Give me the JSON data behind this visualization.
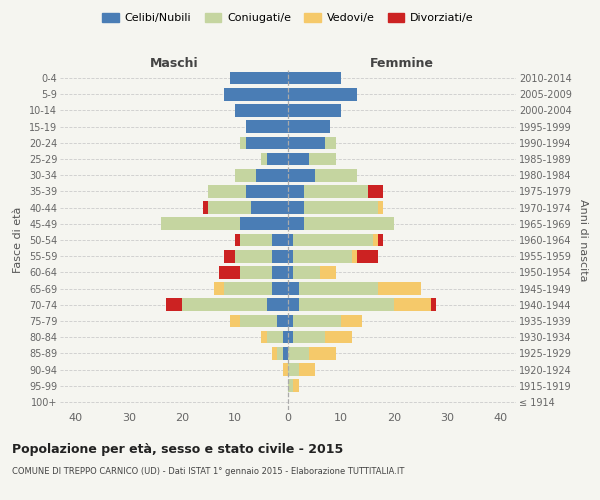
{
  "age_groups": [
    "100+",
    "95-99",
    "90-94",
    "85-89",
    "80-84",
    "75-79",
    "70-74",
    "65-69",
    "60-64",
    "55-59",
    "50-54",
    "45-49",
    "40-44",
    "35-39",
    "30-34",
    "25-29",
    "20-24",
    "15-19",
    "10-14",
    "5-9",
    "0-4"
  ],
  "birth_years": [
    "≤ 1914",
    "1915-1919",
    "1920-1924",
    "1925-1929",
    "1930-1934",
    "1935-1939",
    "1940-1944",
    "1945-1949",
    "1950-1954",
    "1955-1959",
    "1960-1964",
    "1965-1969",
    "1970-1974",
    "1975-1979",
    "1980-1984",
    "1985-1989",
    "1990-1994",
    "1995-1999",
    "2000-2004",
    "2005-2009",
    "2010-2014"
  ],
  "colors": {
    "celibe": "#4a7db5",
    "coniugato": "#c5d5a0",
    "vedovo": "#f5c96a",
    "divorziato": "#cc2222"
  },
  "maschi": {
    "celibe": [
      0,
      0,
      0,
      1,
      1,
      2,
      4,
      3,
      3,
      3,
      3,
      9,
      7,
      8,
      6,
      4,
      8,
      8,
      10,
      12,
      11
    ],
    "coniugato": [
      0,
      0,
      0,
      1,
      3,
      7,
      16,
      9,
      6,
      7,
      6,
      15,
      8,
      7,
      4,
      1,
      1,
      0,
      0,
      0,
      0
    ],
    "vedovo": [
      0,
      0,
      1,
      1,
      1,
      2,
      0,
      2,
      0,
      0,
      0,
      0,
      0,
      0,
      0,
      0,
      0,
      0,
      0,
      0,
      0
    ],
    "divorziato": [
      0,
      0,
      0,
      0,
      0,
      0,
      3,
      0,
      4,
      2,
      1,
      0,
      1,
      0,
      0,
      0,
      0,
      0,
      0,
      0,
      0
    ]
  },
  "femmine": {
    "nubile": [
      0,
      0,
      0,
      0,
      1,
      1,
      2,
      2,
      1,
      1,
      1,
      3,
      3,
      3,
      5,
      4,
      7,
      8,
      10,
      13,
      10
    ],
    "coniugata": [
      0,
      1,
      2,
      4,
      6,
      9,
      18,
      15,
      5,
      11,
      15,
      17,
      14,
      12,
      8,
      5,
      2,
      0,
      0,
      0,
      0
    ],
    "vedova": [
      0,
      1,
      3,
      5,
      5,
      4,
      7,
      8,
      3,
      1,
      1,
      0,
      1,
      0,
      0,
      0,
      0,
      0,
      0,
      0,
      0
    ],
    "divorziata": [
      0,
      0,
      0,
      0,
      0,
      0,
      1,
      0,
      0,
      4,
      1,
      0,
      0,
      3,
      0,
      0,
      0,
      0,
      0,
      0,
      0
    ]
  },
  "xlim": 43,
  "title": "Popolazione per età, sesso e stato civile - 2015",
  "subtitle": "COMUNE DI TREPPO CARNICO (UD) - Dati ISTAT 1° gennaio 2015 - Elaborazione TUTTITALIA.IT",
  "ylabel_left": "Fasce di età",
  "ylabel_right": "Anni di nascita",
  "xlabel_left": "Maschi",
  "xlabel_right": "Femmine",
  "legend_labels": [
    "Celibi/Nubili",
    "Coniugati/e",
    "Vedovi/e",
    "Divorziati/e"
  ],
  "bg_color": "#f5f5f0"
}
